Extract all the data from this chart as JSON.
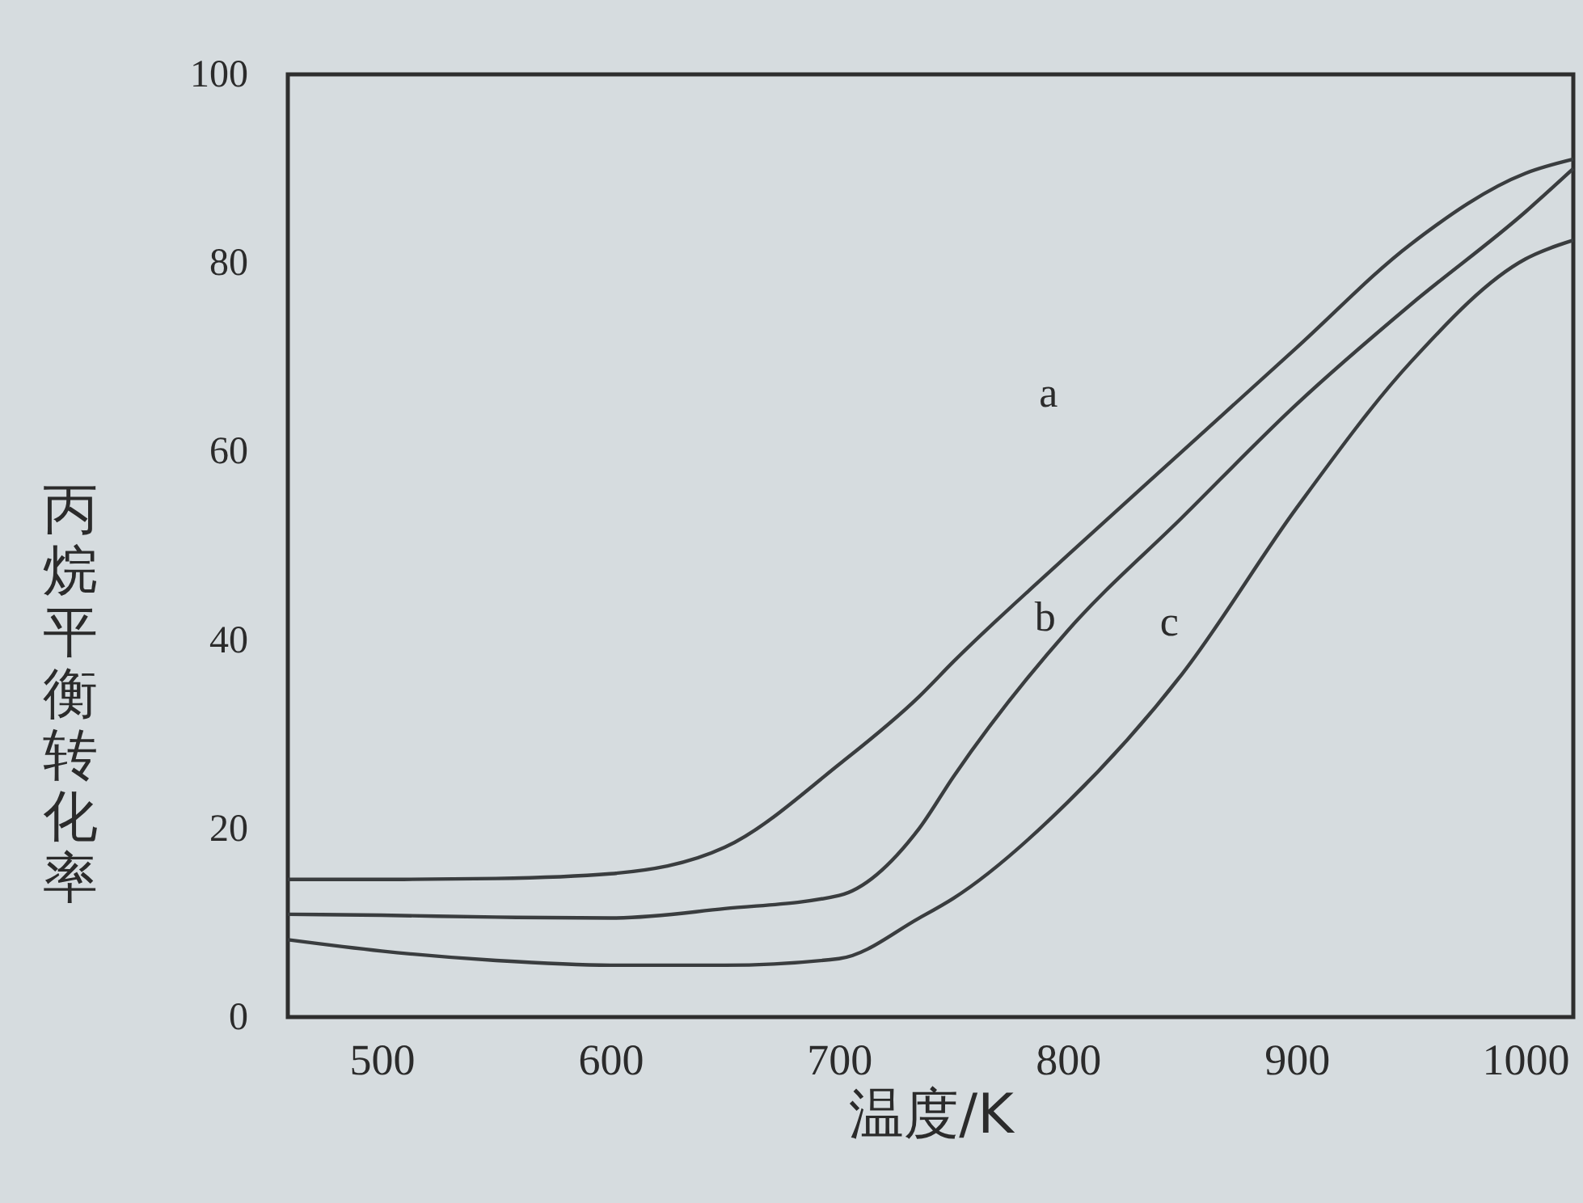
{
  "chart_data": {
    "type": "line",
    "xlabel": "温度/K",
    "ylabel": "丙烷平衡转化率",
    "x": [
      459,
      500,
      550,
      600,
      650,
      700,
      735,
      750,
      800,
      850,
      900,
      950,
      1000,
      1021
    ],
    "series": [
      {
        "name": "a",
        "color": "#3a3d3f",
        "values": [
          14.6,
          14.6,
          14.7,
          15.2,
          18,
          26.8,
          34,
          37.7,
          49,
          60,
          71,
          82,
          89.5,
          91
        ]
      },
      {
        "name": "b",
        "color": "#3a3d3f",
        "values": [
          10.9,
          10.8,
          10.6,
          10.5,
          11.5,
          12.9,
          20,
          25.5,
          41,
          53,
          65,
          75.6,
          85.4,
          90
        ]
      },
      {
        "name": "c",
        "color": "#3a3d3f",
        "values": [
          8.2,
          7,
          6,
          5.5,
          5.5,
          6.2,
          10.5,
          12.6,
          22.8,
          36.4,
          54,
          69.5,
          80.4,
          82.4
        ]
      }
    ],
    "xlim": [
      459,
      1021
    ],
    "xticks": [
      500,
      600,
      700,
      800,
      900,
      1000
    ],
    "ylim": [
      0,
      100
    ],
    "yticks": [
      0,
      20,
      40,
      60,
      80,
      100
    ],
    "grid": false,
    "legend": false,
    "marker": "none",
    "line_style": "solid"
  }
}
